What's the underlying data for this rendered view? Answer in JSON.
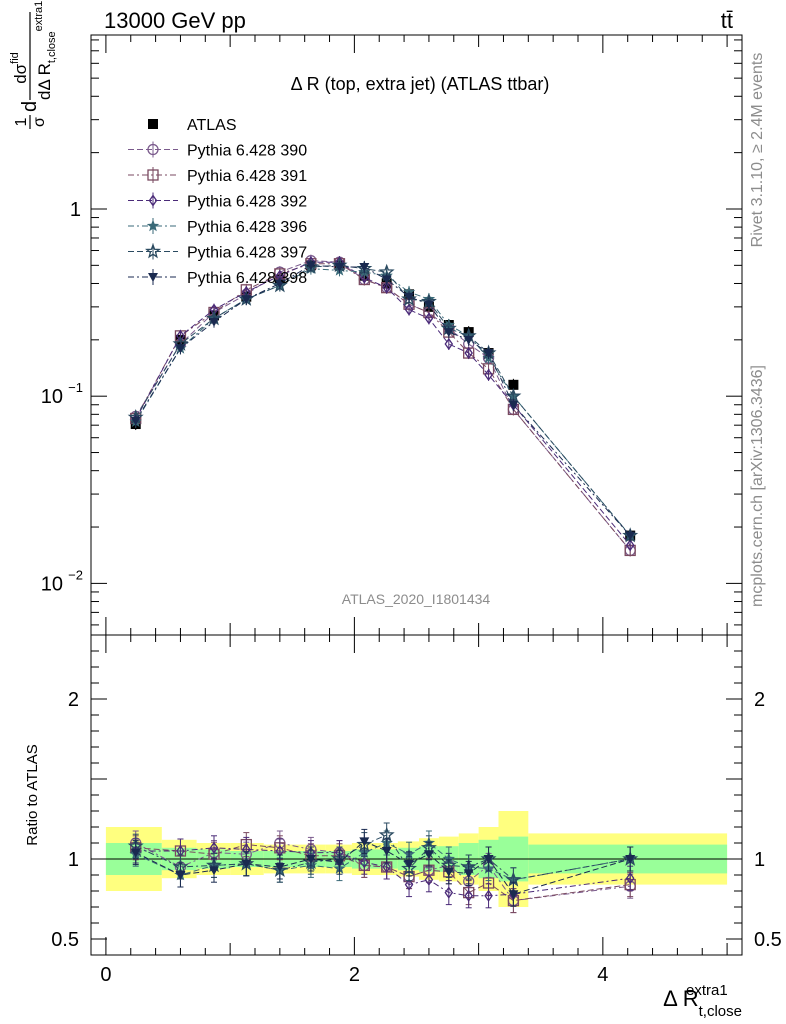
{
  "header": {
    "energy_label": "13000 GeV pp",
    "process_label": "tt̄"
  },
  "side_labels": {
    "rivet": "Rivet 3.1.10, ≥ 2.4M events",
    "mcplots": "mcplots.cern.ch [arXiv:1306.3436]"
  },
  "chart_data": [
    {
      "type": "scatter",
      "title": "Δ R (top, extra jet) (ATLAS ttbar)",
      "analysis_label": "ATLAS_2020_I1801434",
      "ylabel": "dσ^fid / dΔR_t,close^extra1 normalised",
      "ylabel_parts": {
        "frac1_num": "1",
        "frac1_den": "σ",
        "d": "d",
        "frac2_num": "dσ",
        "frac2_num_sup": "fid",
        "frac2_den": "dΔ R",
        "frac2_den_sub": "t,close",
        "frac2_den_sup": "extra1"
      },
      "xlabel": "Δ R",
      "xlabel_sub": "t,close",
      "xlabel_sup": "extra1",
      "yscale": "log",
      "xlim": [
        -0.12,
        5.12
      ],
      "ylim": [
        0.0053,
        8.5
      ],
      "y_ticks": [
        0.01,
        0.1,
        1
      ],
      "y_tick_labels": [
        {
          "base": "10",
          "exp": "−2"
        },
        {
          "base": "10",
          "exp": "−1"
        },
        {
          "base": "1",
          "exp": ""
        }
      ],
      "x": [
        0.24,
        0.6,
        0.87,
        1.13,
        1.4,
        1.65,
        1.88,
        2.08,
        2.26,
        2.44,
        2.6,
        2.76,
        2.92,
        3.08,
        3.28,
        4.22
      ],
      "series": [
        {
          "name": "ATLAS",
          "marker": "square-filled",
          "color": "#000000",
          "line": false,
          "values": [
            0.071,
            0.2,
            0.27,
            0.34,
            0.42,
            0.5,
            0.5,
            0.44,
            0.4,
            0.35,
            0.3,
            0.24,
            0.22,
            0.17,
            0.115,
            0.018
          ]
        },
        {
          "name": "Pythia 6.428 390",
          "marker": "circle-open",
          "color": "#7a5a8c",
          "values": [
            0.078,
            0.19,
            0.28,
            0.35,
            0.46,
            0.53,
            0.52,
            0.42,
            0.38,
            0.31,
            0.28,
            0.23,
            0.19,
            0.16,
            0.085,
            0.015
          ]
        },
        {
          "name": "Pythia 6.428 391",
          "marker": "square-open",
          "color": "#7a4a60",
          "values": [
            0.076,
            0.21,
            0.28,
            0.37,
            0.45,
            0.51,
            0.51,
            0.42,
            0.38,
            0.31,
            0.28,
            0.22,
            0.17,
            0.14,
            0.085,
            0.015
          ]
        },
        {
          "name": "Pythia 6.428 392",
          "marker": "diamond-open",
          "color": "#4a2a78",
          "values": [
            0.075,
            0.21,
            0.29,
            0.36,
            0.44,
            0.52,
            0.52,
            0.43,
            0.38,
            0.29,
            0.26,
            0.19,
            0.17,
            0.13,
            0.09,
            0.016
          ]
        },
        {
          "name": "Pythia 6.428 396",
          "marker": "star-filled",
          "color": "#3a6a78",
          "values": [
            0.073,
            0.18,
            0.26,
            0.33,
            0.39,
            0.48,
            0.47,
            0.46,
            0.44,
            0.36,
            0.33,
            0.24,
            0.21,
            0.16,
            0.1,
            0.018
          ]
        },
        {
          "name": "Pythia 6.428 397",
          "marker": "star-open",
          "color": "#2a4a60",
          "values": [
            0.077,
            0.19,
            0.26,
            0.33,
            0.39,
            0.49,
            0.5,
            0.48,
            0.46,
            0.33,
            0.32,
            0.23,
            0.21,
            0.17,
            0.1,
            0.018
          ]
        },
        {
          "name": "Pythia 6.428 398",
          "marker": "triangle-down-filled",
          "color": "#1a2a50",
          "values": [
            0.074,
            0.18,
            0.25,
            0.33,
            0.4,
            0.5,
            0.49,
            0.49,
            0.42,
            0.34,
            0.31,
            0.22,
            0.2,
            0.17,
            0.09,
            0.018
          ]
        }
      ]
    },
    {
      "type": "scatter",
      "ylabel": "Ratio to ATLAS",
      "ylim": [
        0.4,
        2.4
      ],
      "y_ticks": [
        0.5,
        1,
        2
      ],
      "y_tick_labels": [
        "0.5",
        "1",
        "2"
      ],
      "x_ticks": [
        0,
        2,
        4
      ],
      "x_tick_labels": [
        "0",
        "2",
        "4"
      ],
      "reference_line": 1,
      "bins": [
        [
          0,
          0.45
        ],
        [
          0.45,
          0.73
        ],
        [
          0.73,
          1.0
        ],
        [
          1.0,
          1.27
        ],
        [
          1.27,
          1.53
        ],
        [
          1.53,
          1.77
        ],
        [
          1.77,
          1.98
        ],
        [
          1.98,
          2.17
        ],
        [
          2.17,
          2.35
        ],
        [
          2.35,
          2.52
        ],
        [
          2.52,
          2.68
        ],
        [
          2.68,
          2.84
        ],
        [
          2.84,
          3.0
        ],
        [
          3.0,
          3.16
        ],
        [
          3.16,
          3.4
        ],
        [
          3.4,
          5.0
        ]
      ],
      "band_inner": [
        0.1,
        0.07,
        0.06,
        0.05,
        0.05,
        0.05,
        0.05,
        0.06,
        0.06,
        0.07,
        0.08,
        0.08,
        0.1,
        0.12,
        0.14,
        0.09
      ],
      "band_outer": [
        0.2,
        0.12,
        0.1,
        0.1,
        0.09,
        0.09,
        0.09,
        0.1,
        0.1,
        0.11,
        0.13,
        0.14,
        0.16,
        0.2,
        0.3,
        0.16
      ],
      "band_colors": {
        "inner": "#99ff99",
        "outer": "#ffff7f"
      },
      "series": [
        {
          "name": "Pythia 6.428 390",
          "values": [
            1.1,
            0.95,
            1.04,
            1.03,
            1.1,
            1.06,
            1.04,
            0.96,
            0.95,
            0.89,
            0.93,
            0.96,
            0.86,
            0.96,
            0.74,
            0.83
          ]
        },
        {
          "name": "Pythia 6.428 391",
          "values": [
            1.07,
            1.05,
            1.03,
            1.09,
            1.07,
            1.02,
            1.02,
            0.96,
            0.95,
            0.89,
            0.93,
            0.92,
            0.79,
            0.85,
            0.74,
            0.84
          ]
        },
        {
          "name": "Pythia 6.428 392",
          "values": [
            1.05,
            1.05,
            1.07,
            1.06,
            1.05,
            1.04,
            1.04,
            0.98,
            0.95,
            0.84,
            0.87,
            0.79,
            0.77,
            0.77,
            0.78,
            0.88
          ]
        },
        {
          "name": "Pythia 6.428 396",
          "values": [
            1.03,
            0.9,
            0.96,
            0.97,
            0.93,
            0.96,
            0.94,
            1.04,
            1.1,
            1.03,
            1.1,
            1.0,
            0.95,
            0.94,
            0.87,
            1.0
          ]
        },
        {
          "name": "Pythia 6.428 397",
          "values": [
            1.08,
            0.95,
            0.96,
            0.97,
            0.93,
            0.98,
            1.0,
            1.09,
            1.15,
            0.94,
            1.07,
            0.96,
            0.95,
            1.0,
            0.87,
            1.0
          ]
        },
        {
          "name": "Pythia 6.428 398",
          "values": [
            1.04,
            0.9,
            0.93,
            0.97,
            0.95,
            1.0,
            0.98,
            1.11,
            1.05,
            0.97,
            1.03,
            0.92,
            0.91,
            1.0,
            0.78,
            1.0
          ]
        }
      ]
    }
  ]
}
